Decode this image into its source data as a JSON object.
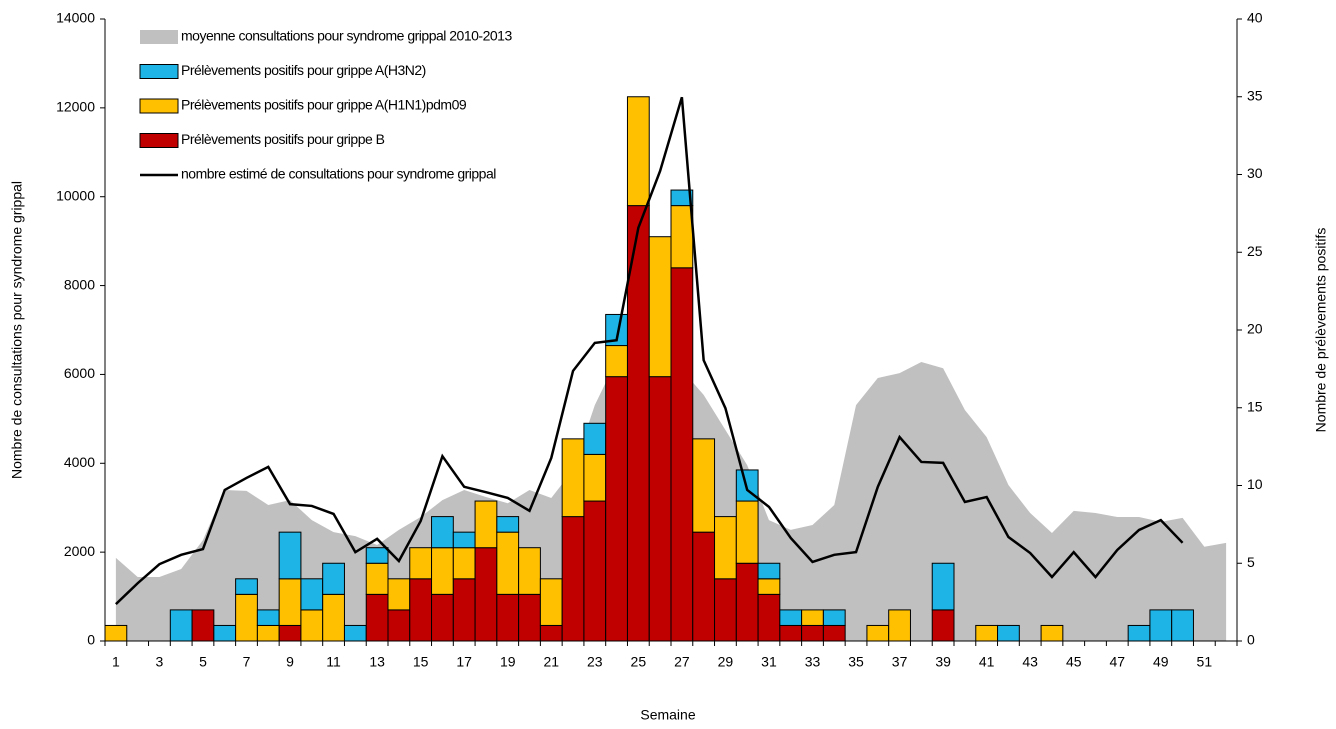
{
  "chart_data": {
    "type": "bar",
    "xlabel": "Semaine",
    "ylabel": "Nombre de consultations pour syndrome grippal",
    "y2label": "Nombre de prélèvements positifs",
    "categories": [
      1,
      null,
      3,
      null,
      5,
      null,
      7,
      null,
      9,
      null,
      11,
      null,
      13,
      null,
      15,
      null,
      17,
      null,
      19,
      null,
      21,
      null,
      23,
      null,
      25,
      null,
      27,
      null,
      29,
      null,
      31,
      null,
      33,
      null,
      35,
      null,
      37,
      null,
      39,
      null,
      41,
      null,
      43,
      null,
      45,
      null,
      47,
      null,
      49,
      null,
      51,
      null
    ],
    "ylim": [
      0,
      14000
    ],
    "yticks": [
      0,
      2000,
      4000,
      6000,
      8000,
      10000,
      12000,
      14000
    ],
    "y2lim": [
      0,
      40
    ],
    "y2ticks": [
      0,
      5,
      10,
      15,
      20,
      25,
      30,
      35,
      40
    ],
    "series": [
      {
        "name": "moyenne consultations pour syndrome grippal 2010-2013",
        "type": "area",
        "color": "#c0c0c0",
        "values": [
          1870,
          1440,
          1440,
          1620,
          2270,
          3400,
          3380,
          3060,
          3170,
          2720,
          2450,
          2360,
          2160,
          2500,
          2790,
          3170,
          3400,
          3240,
          3100,
          3400,
          3220,
          3850,
          5310,
          6320,
          7050,
          7000,
          6100,
          5540,
          4750,
          3960,
          2720,
          2500,
          2610,
          3060,
          5310,
          5920,
          6030,
          6280,
          6140,
          5200,
          4590,
          3510,
          2880,
          2430,
          2930,
          2880,
          2790,
          2790,
          2680,
          2770,
          2120,
          2210
        ]
      },
      {
        "name": "Prélèvements positifs pour grippe A(H3N2)",
        "type": "bar",
        "axis": "y2",
        "color": "#1eb4e6",
        "values": [
          0,
          0,
          0,
          2,
          0,
          1,
          1,
          1,
          3,
          2,
          2,
          1,
          1,
          0,
          0,
          2,
          1,
          0,
          1,
          0,
          0,
          0,
          2,
          2,
          0,
          0,
          1,
          0,
          0,
          2,
          1,
          1,
          0,
          1,
          0,
          0,
          0,
          0,
          3,
          0,
          0,
          1,
          0,
          0,
          0,
          0,
          0,
          1,
          2,
          2,
          0,
          0
        ]
      },
      {
        "name": "Prélèvements positifs pour grippe A(H1N1)pdm09",
        "type": "bar",
        "axis": "y2",
        "color": "#ffc000",
        "values": [
          1,
          0,
          0,
          0,
          0,
          0,
          3,
          1,
          3,
          2,
          3,
          0,
          2,
          2,
          2,
          3,
          2,
          3,
          4,
          3,
          3,
          5,
          3,
          2,
          7,
          9,
          4,
          6,
          4,
          4,
          1,
          0,
          1,
          0,
          0,
          1,
          2,
          0,
          0,
          0,
          1,
          0,
          0,
          1,
          0,
          0,
          0,
          0,
          0,
          0,
          0,
          0
        ]
      },
      {
        "name": "Prélèvements positifs pour grippe B",
        "type": "bar",
        "axis": "y2",
        "color": "#c00000",
        "values": [
          0,
          0,
          0,
          0,
          2,
          0,
          0,
          0,
          1,
          0,
          0,
          0,
          3,
          2,
          4,
          3,
          4,
          6,
          3,
          3,
          1,
          8,
          9,
          17,
          28,
          17,
          24,
          7,
          4,
          5,
          3,
          1,
          1,
          1,
          0,
          0,
          0,
          0,
          2,
          0,
          0,
          0,
          0,
          0,
          0,
          0,
          0,
          0,
          0,
          0,
          0,
          0
        ]
      },
      {
        "name": "nombre estimé de consultations pour syndrome grippal",
        "type": "line",
        "color": "#000000",
        "values": [
          830,
          1300,
          1730,
          1940,
          2070,
          3400,
          3670,
          3920,
          3080,
          3040,
          2860,
          2000,
          2300,
          1800,
          2700,
          4160,
          3470,
          3350,
          3220,
          2930,
          4120,
          6080,
          6710,
          6770,
          9300,
          10580,
          12240,
          6320,
          5240,
          3400,
          3020,
          2320,
          1780,
          1940,
          2000,
          3470,
          4590,
          4030,
          4010,
          3130,
          3240,
          2340,
          1980,
          1440,
          2000,
          1440,
          2050,
          2500,
          2720,
          2210,
          null,
          null
        ]
      }
    ]
  }
}
